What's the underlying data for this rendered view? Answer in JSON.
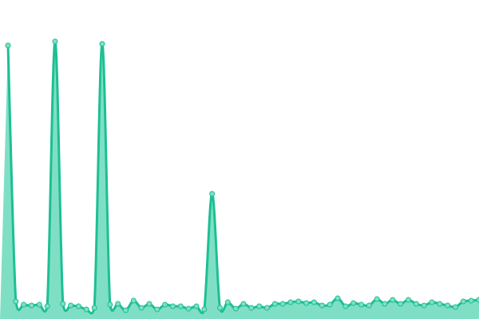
{
  "chart_data": {
    "type": "area",
    "values": [
      343,
      22,
      18,
      17,
      18,
      16,
      348,
      19,
      17,
      16,
      12,
      14,
      345,
      18,
      19,
      11,
      23,
      14,
      19,
      12,
      18,
      16,
      16,
      13,
      16,
      12,
      157,
      14,
      21,
      13,
      19,
      14,
      16,
      14,
      19,
      19,
      21,
      22,
      20,
      21,
      17,
      18,
      26,
      16,
      20,
      18,
      17,
      25,
      19,
      24,
      19,
      24,
      19,
      17,
      21,
      19,
      17,
      15,
      22,
      23,
      24
    ],
    "color": "#1dbf94",
    "fill": "#7fdfc4"
  }
}
